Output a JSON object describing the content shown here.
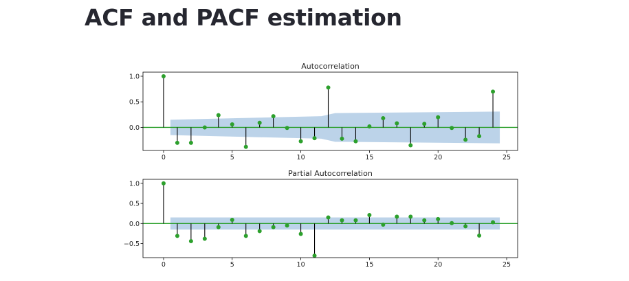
{
  "page": {
    "title": "ACF and PACF estimation"
  },
  "colors": {
    "marker": "#2ca02c",
    "zero_line": "#2ca02c",
    "stem": "#000000",
    "confidence_band": "#b0cbe5"
  },
  "chart_data": [
    {
      "type": "stem",
      "title": "Autocorrelation",
      "xlim": [
        -1.5,
        25.8
      ],
      "ylim": [
        -0.45,
        1.08
      ],
      "x_ticks": [
        0,
        5,
        10,
        15,
        20,
        25
      ],
      "y_ticks": [
        0.0,
        0.5,
        1.0
      ],
      "y_tick_labels": [
        "0.0",
        "0.5",
        "1.0"
      ],
      "lags": [
        0,
        1,
        2,
        3,
        4,
        5,
        6,
        7,
        8,
        9,
        10,
        11,
        12,
        13,
        14,
        15,
        16,
        17,
        18,
        19,
        20,
        21,
        22,
        23,
        24
      ],
      "values": [
        1.0,
        -0.3,
        -0.3,
        0.0,
        0.24,
        0.06,
        -0.38,
        0.09,
        0.22,
        -0.01,
        -0.27,
        -0.21,
        0.78,
        -0.22,
        -0.27,
        0.02,
        0.18,
        0.08,
        -0.35,
        0.07,
        0.2,
        -0.01,
        -0.24,
        -0.17,
        0.7
      ],
      "confidence_band": {
        "x": [
          0.5,
          11.5,
          12.5,
          24.5
        ],
        "upper": [
          0.15,
          0.22,
          0.28,
          0.31
        ],
        "lower": [
          -0.15,
          -0.22,
          -0.28,
          -0.31
        ]
      }
    },
    {
      "type": "stem",
      "title": "Partial Autocorrelation",
      "xlim": [
        -1.5,
        25.8
      ],
      "ylim": [
        -0.85,
        1.1
      ],
      "x_ticks": [
        0,
        5,
        10,
        15,
        20,
        25
      ],
      "y_ticks": [
        -0.5,
        0.0,
        0.5,
        1.0
      ],
      "y_tick_labels": [
        "−0.5",
        "0.0",
        "0.5",
        "1.0"
      ],
      "lags": [
        0,
        1,
        2,
        3,
        4,
        5,
        6,
        7,
        8,
        9,
        10,
        11,
        12,
        13,
        14,
        15,
        16,
        17,
        18,
        19,
        20,
        21,
        22,
        23,
        24
      ],
      "values": [
        1.0,
        -0.31,
        -0.44,
        -0.38,
        -0.09,
        0.09,
        -0.31,
        -0.19,
        -0.09,
        -0.05,
        -0.26,
        -0.8,
        0.15,
        0.08,
        0.08,
        0.21,
        -0.03,
        0.17,
        0.17,
        0.08,
        0.11,
        0.01,
        -0.07,
        -0.3,
        0.03
      ],
      "confidence_band": {
        "x": [
          0.5,
          24.5
        ],
        "upper": [
          0.15,
          0.15
        ],
        "lower": [
          -0.15,
          -0.15
        ]
      }
    }
  ]
}
